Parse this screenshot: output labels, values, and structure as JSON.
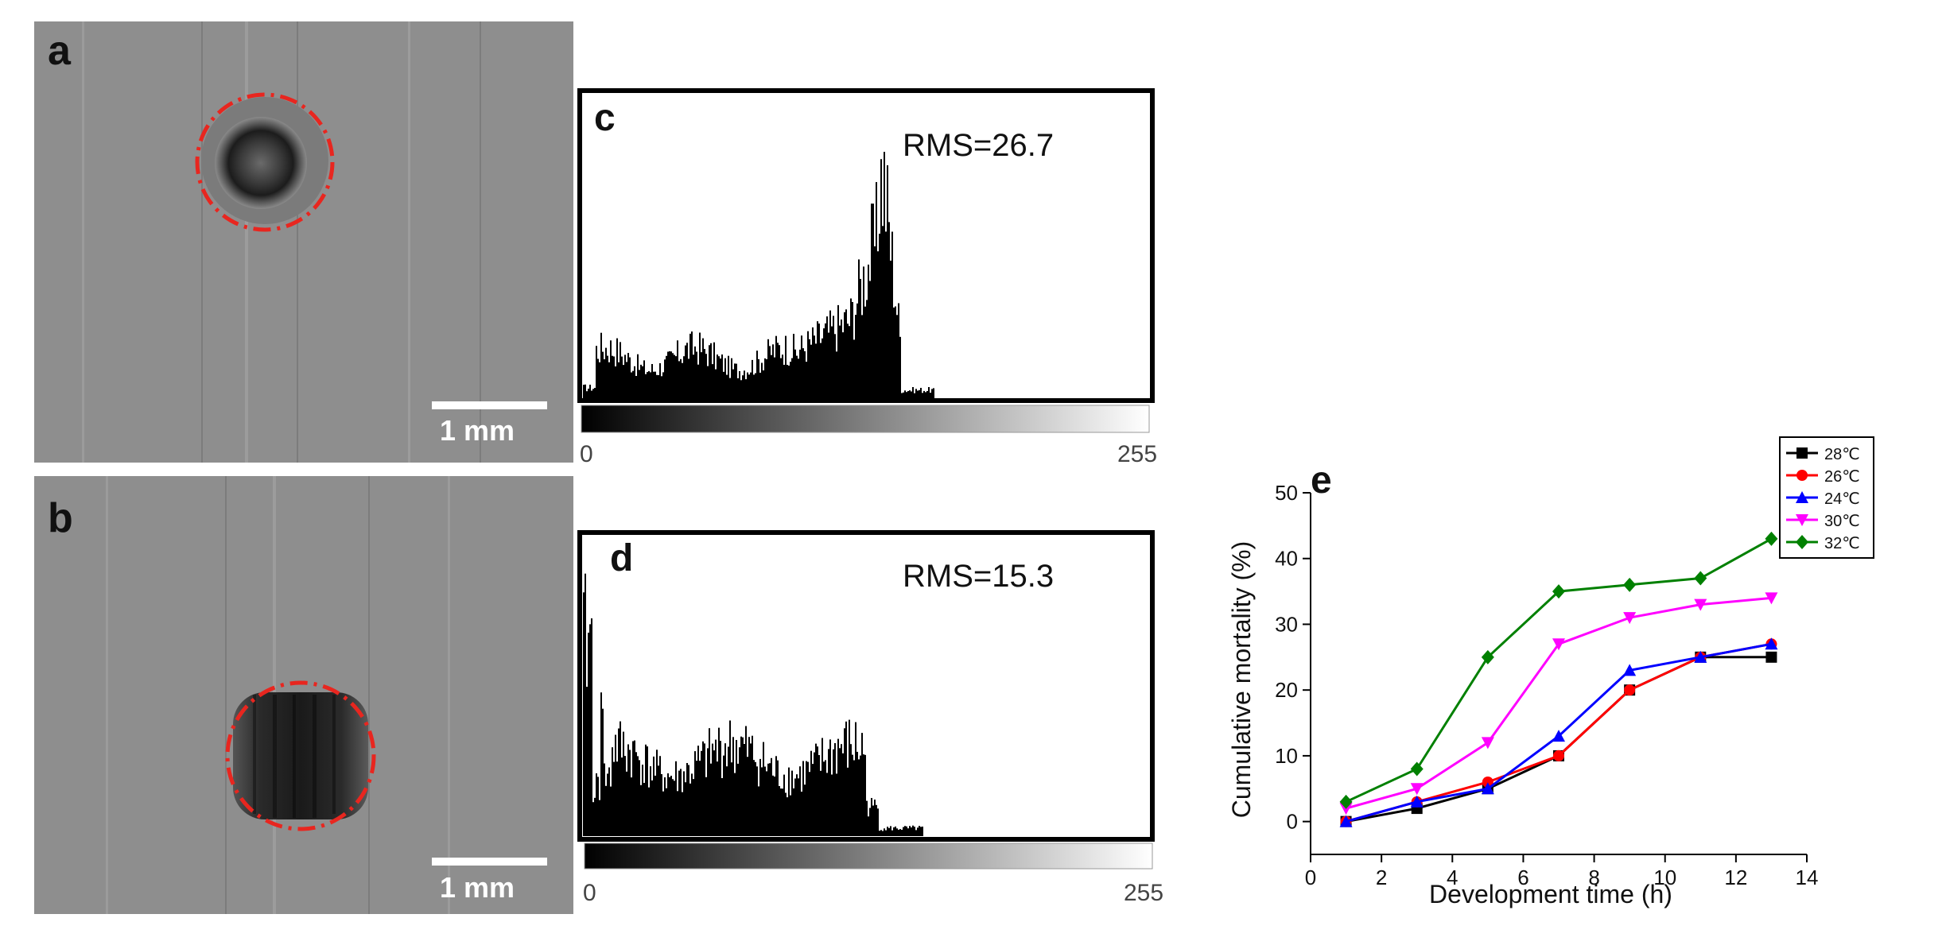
{
  "panel_a": {
    "label": "a",
    "scale_label": "1 mm"
  },
  "panel_b": {
    "label": "b",
    "scale_label": "1 mm"
  },
  "panel_c": {
    "label": "c",
    "annotation": "RMS=26.7",
    "range_min": "0",
    "range_max": "255"
  },
  "panel_d": {
    "label": "d",
    "annotation": "RMS=15.3",
    "range_min": "0",
    "range_max": "255"
  },
  "colors": {
    "outline": "#e8261f"
  },
  "chart_data": {
    "type": "line",
    "label": "e",
    "xlabel": "Development time (h)",
    "ylabel": "Cumulative mortality (%)",
    "xlim": [
      0,
      14
    ],
    "ylim": [
      -5,
      50
    ],
    "xticks": [
      0,
      2,
      4,
      6,
      8,
      10,
      12,
      14
    ],
    "yticks": [
      0,
      10,
      20,
      30,
      40,
      50
    ],
    "grid": false,
    "legend_position": "top-right",
    "x": [
      1,
      3,
      5,
      7,
      9,
      11,
      13
    ],
    "series": [
      {
        "name": "28℃",
        "color": "#000000",
        "marker": "square",
        "values": [
          0,
          2,
          5,
          10,
          20,
          25,
          25
        ]
      },
      {
        "name": "26℃",
        "color": "#ff0000",
        "marker": "circle",
        "values": [
          0,
          3,
          6,
          10,
          20,
          25,
          27
        ]
      },
      {
        "name": "24℃",
        "color": "#0000ff",
        "marker": "triangle",
        "values": [
          0,
          3,
          5,
          13,
          23,
          25,
          27
        ]
      },
      {
        "name": "30℃",
        "color": "#ff00ff",
        "marker": "triangle-down",
        "values": [
          2,
          5,
          12,
          27,
          31,
          33,
          34
        ]
      },
      {
        "name": "32℃",
        "color": "#008000",
        "marker": "diamond",
        "values": [
          3,
          8,
          25,
          35,
          36,
          37,
          43
        ]
      }
    ]
  }
}
